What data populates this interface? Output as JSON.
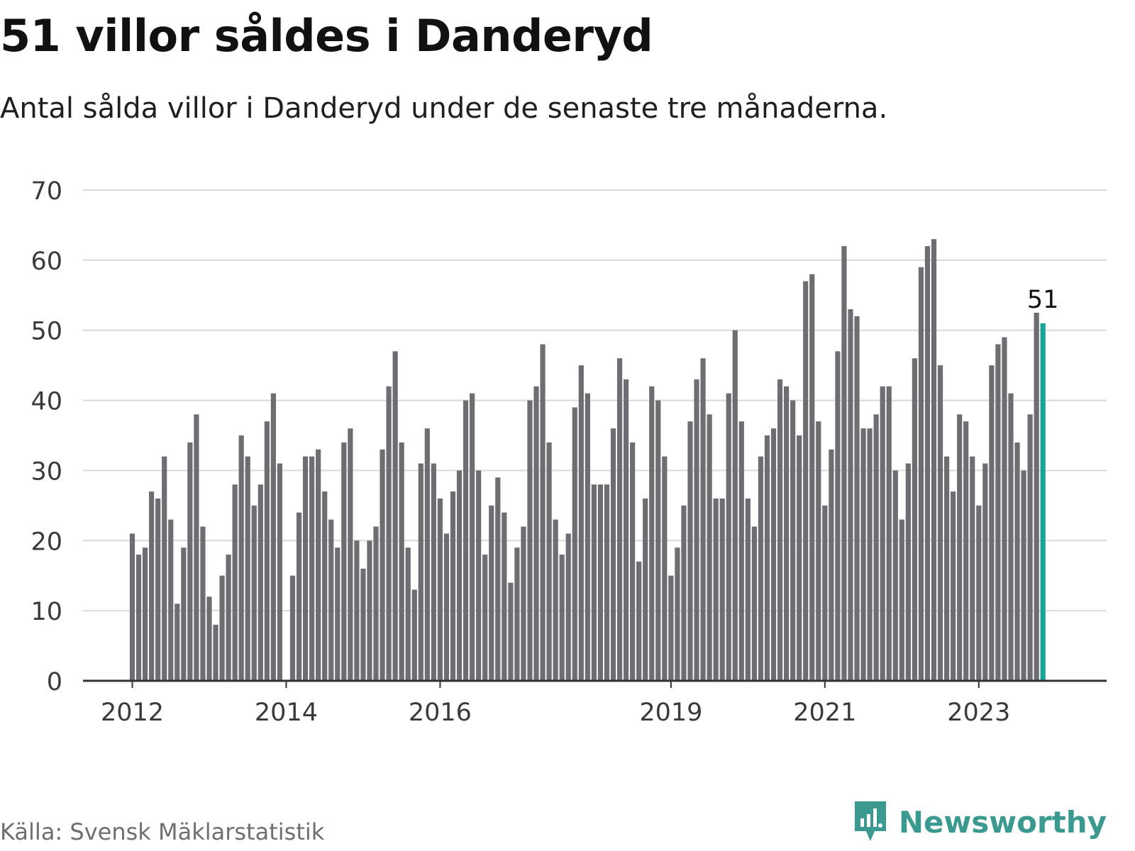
{
  "title": "51 villor såldes i Danderyd",
  "subtitle": "Antal sålda villor i Danderyd under de senaste tre månaderna.",
  "source": "Källa: Svensk Mäklarstatistik",
  "brand": "Newsworthy",
  "colors": {
    "bar": "#6e6d72",
    "highlight": "#1aa399",
    "grid": "#d9d9d9",
    "axis": "#333333",
    "brand": "#3a9a8f"
  },
  "chart_data": {
    "type": "bar",
    "title": "51 villor såldes i Danderyd",
    "xlabel": "",
    "ylabel": "",
    "ylim": [
      0,
      70
    ],
    "yticks": [
      0,
      10,
      20,
      30,
      40,
      50,
      60,
      70
    ],
    "grid": true,
    "first_month": "2012-01",
    "highlight_label": "51",
    "x_tick_labels": [
      {
        "label": "2012",
        "index": 0
      },
      {
        "label": "2014",
        "index": 24
      },
      {
        "label": "2016",
        "index": 48
      },
      {
        "label": "2019",
        "index": 84
      },
      {
        "label": "2021",
        "index": 108
      },
      {
        "label": "2023",
        "index": 132
      }
    ],
    "values": [
      21,
      18,
      19,
      27,
      26,
      32,
      23,
      11,
      19,
      34,
      38,
      22,
      12,
      8,
      15,
      18,
      28,
      35,
      32,
      25,
      28,
      37,
      41,
      31,
      0,
      15,
      24,
      32,
      32,
      33,
      27,
      23,
      19,
      34,
      36,
      20,
      16,
      20,
      22,
      33,
      42,
      47,
      34,
      19,
      13,
      31,
      36,
      31,
      26,
      21,
      27,
      30,
      40,
      41,
      30,
      18,
      25,
      29,
      24,
      14,
      19,
      22,
      40,
      42,
      48,
      34,
      23,
      18,
      21,
      39,
      45,
      41,
      28,
      28,
      28,
      36,
      46,
      43,
      34,
      17,
      26,
      42,
      40,
      32,
      15,
      19,
      25,
      37,
      43,
      46,
      38,
      26,
      26,
      41,
      50,
      37,
      26,
      22,
      32,
      35,
      36,
      43,
      42,
      40,
      35,
      57,
      58,
      37,
      25,
      33,
      47,
      62,
      53,
      52,
      36,
      36,
      38,
      42,
      42,
      30,
      23,
      31,
      46,
      59,
      62,
      63,
      45,
      32,
      27,
      38,
      37,
      32,
      25,
      31,
      45,
      48,
      49,
      41,
      34,
      30,
      38,
      52.5,
      51
    ]
  }
}
